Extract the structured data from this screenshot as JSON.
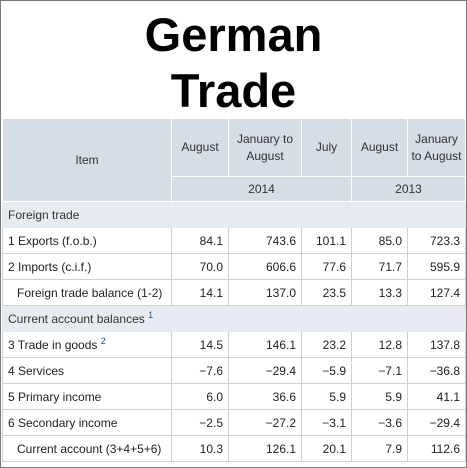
{
  "title_line1": "German",
  "title_line2": "Trade",
  "header": {
    "item": "Item",
    "columns": [
      "August",
      "January to August",
      "July",
      "August",
      "January to August"
    ],
    "years": [
      "2014",
      "2013"
    ]
  },
  "sections": [
    {
      "label": "Foreign trade",
      "footnote": "",
      "rows": [
        {
          "label": "1  Exports (f.o.b.)",
          "footnote": "",
          "indent": false,
          "values": [
            "84.1",
            "743.6",
            "101.1",
            "85.0",
            "723.3"
          ]
        },
        {
          "label": "2  Imports (c.i.f.)",
          "footnote": "",
          "indent": false,
          "values": [
            "70.0",
            "606.6",
            "77.6",
            "71.7",
            "595.9"
          ]
        },
        {
          "label": "Foreign trade balance (1-2)",
          "footnote": "",
          "indent": true,
          "values": [
            "14.1",
            "137.0",
            "23.5",
            "13.3",
            "127.4"
          ]
        }
      ]
    },
    {
      "label": "Current account balances",
      "footnote": "1",
      "rows": [
        {
          "label": "3  Trade in goods",
          "footnote": "2",
          "indent": false,
          "values": [
            "14.5",
            "146.1",
            "23.2",
            "12.8",
            "137.8"
          ]
        },
        {
          "label": "4  Services",
          "footnote": "",
          "indent": false,
          "values": [
            "−7.6",
            "−29.4",
            "−5.9",
            "−7.1",
            "−36.8"
          ]
        },
        {
          "label": "5  Primary income",
          "footnote": "",
          "indent": false,
          "values": [
            "6.0",
            "36.6",
            "5.9",
            "5.9",
            "41.1"
          ]
        },
        {
          "label": "6  Secondary income",
          "footnote": "",
          "indent": false,
          "values": [
            "−2.5",
            "−27.2",
            "−3.1",
            "−3.6",
            "−29.4"
          ]
        },
        {
          "label": "Current account (3+4+5+6)",
          "footnote": "",
          "indent": true,
          "values": [
            "10.3",
            "126.1",
            "20.1",
            "7.9",
            "112.6"
          ]
        }
      ]
    }
  ]
}
